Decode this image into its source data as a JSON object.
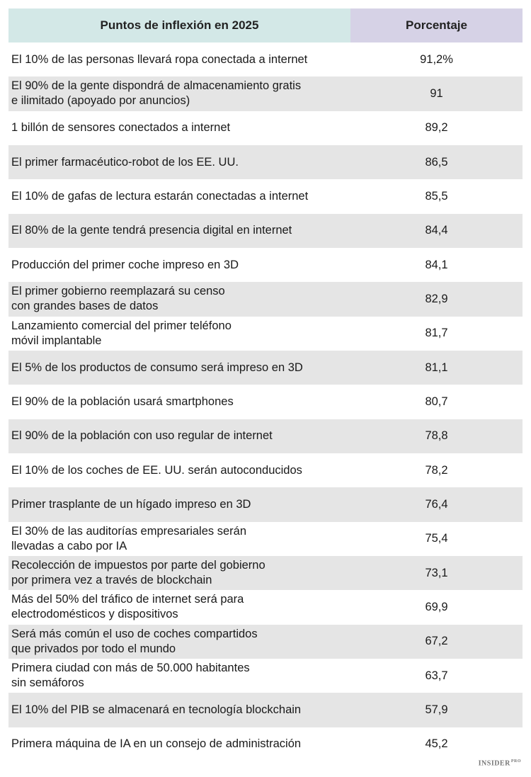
{
  "table": {
    "headers": [
      "Puntos de inflexión en 2025",
      "Porcentaje"
    ],
    "rows": [
      {
        "label": "El 10% de las personas llevará ropa conectada a internet",
        "value": "91,2%"
      },
      {
        "label": "El 90% de la gente dispondrá de almacenamiento gratis\ne ilimitado (apoyado por anuncios)",
        "value": "91"
      },
      {
        "label": "1 billón de sensores conectados a internet",
        "value": "89,2"
      },
      {
        "label": "El primer farmacéutico-robot de los EE. UU.",
        "value": "86,5"
      },
      {
        "label": "El 10% de gafas de lectura estarán conectadas a internet",
        "value": "85,5"
      },
      {
        "label": "El 80% de la gente tendrá presencia digital en internet",
        "value": "84,4"
      },
      {
        "label": "Producción del primer coche impreso en 3D",
        "value": "84,1"
      },
      {
        "label": "El primer gobierno reemplazará su censo\ncon grandes bases de datos",
        "value": "82,9"
      },
      {
        "label": "Lanzamiento comercial del primer teléfono\nmóvil implantable",
        "value": "81,7"
      },
      {
        "label": "El 5% de los productos de consumo será impreso en 3D",
        "value": "81,1"
      },
      {
        "label": "El 90% de la población usará smartphones",
        "value": "80,7"
      },
      {
        "label": "El 90% de la población con uso regular de internet",
        "value": "78,8"
      },
      {
        "label": "El 10% de los coches de EE. UU. serán autoconducidos",
        "value": "78,2"
      },
      {
        "label": "Primer trasplante de un hígado impreso en 3D",
        "value": "76,4"
      },
      {
        "label": "El 30% de las auditorías empresariales serán\nllevadas a cabo por IA",
        "value": "75,4"
      },
      {
        "label": "Recolección de impuestos por parte del gobierno\npor primera vez a través de blockchain",
        "value": "73,1"
      },
      {
        "label": "Más del 50% del tráfico de internet será para\nelectrodomésticos y dispositivos",
        "value": "69,9"
      },
      {
        "label": "Será más común el uso de coches compartidos\nque privados por todo el mundo",
        "value": "67,2"
      },
      {
        "label": "Primera ciudad con más de 50.000 habitantes\nsin semáforos",
        "value": "63,7"
      },
      {
        "label": "El 10% del PIB se almacenará en tecnología blockchain",
        "value": "57,9"
      },
      {
        "label": "Primera máquina de IA en un consejo de administración",
        "value": "45,2"
      }
    ]
  },
  "chart_data": {
    "type": "table",
    "columns": [
      "Puntos de inflexión en 2025",
      "Porcentaje"
    ],
    "categories": [
      "El 10% de las personas llevará ropa conectada a internet",
      "El 90% de la gente dispondrá de almacenamiento gratis e ilimitado (apoyado por anuncios)",
      "1 billón de sensores conectados a internet",
      "El primer farmacéutico-robot de los EE. UU.",
      "El 10% de gafas de lectura estarán conectadas a internet",
      "El 80% de la gente tendrá presencia digital en internet",
      "Producción del primer coche impreso en 3D",
      "El primer gobierno reemplazará su censo con grandes bases de datos",
      "Lanzamiento comercial del primer teléfono móvil implantable",
      "El 5% de los productos de consumo será impreso en 3D",
      "El 90% de la población usará smartphones",
      "El 90% de la población con uso regular de internet",
      "El 10% de los coches de EE. UU. serán autoconducidos",
      "Primer trasplante de un hígado impreso en 3D",
      "El 30% de las auditorías empresariales serán llevadas a cabo por IA",
      "Recolección de impuestos por parte del gobierno por primera vez a través de blockchain",
      "Más del 50% del tráfico de internet será para electrodomésticos y dispositivos",
      "Será más común el uso de coches compartidos que privados por todo el mundo",
      "Primera ciudad con más de 50.000 habitantes sin semáforos",
      "El 10% del PIB se almacenará en tecnología blockchain",
      "Primera máquina de IA en un consejo de administración"
    ],
    "values": [
      91.2,
      91,
      89.2,
      86.5,
      85.5,
      84.4,
      84.1,
      82.9,
      81.7,
      81.1,
      80.7,
      78.8,
      78.2,
      76.4,
      75.4,
      73.1,
      69.9,
      67.2,
      63.7,
      57.9,
      45.2
    ]
  },
  "logo": {
    "text": "INSIDER",
    "sup": "PRO"
  },
  "colors": {
    "header_left": "#d3e8e7",
    "header_right": "#d6d2e6",
    "row_shade": "#e5e5e5"
  }
}
